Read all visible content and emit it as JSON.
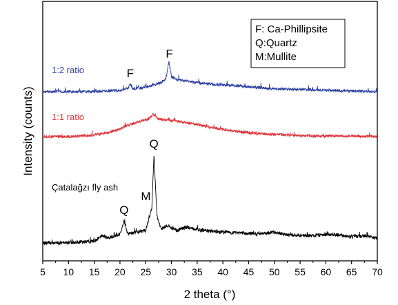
{
  "chart_data": {
    "type": "line",
    "title": "",
    "xlabel": "2 theta (°)",
    "ylabel": "Intensity (counts)",
    "xlim": [
      5,
      70
    ],
    "x_ticks": [
      5,
      10,
      15,
      20,
      25,
      30,
      35,
      40,
      45,
      50,
      55,
      60,
      65,
      70
    ],
    "y_tick_labels": "none",
    "grid": false,
    "legend_box": {
      "placement": "top-right",
      "entries": [
        "F: Ca-Phillipsite",
        "Q:Quartz",
        "M:Mullite"
      ]
    },
    "series": [
      {
        "name": "1:2 ratio",
        "color": "#2b3fa0",
        "x": [
          5,
          10,
          15,
          17,
          20,
          21.5,
          22,
          22.5,
          24,
          26,
          28,
          29,
          29.5,
          30,
          31,
          33,
          35,
          38,
          42,
          46,
          50,
          55,
          60,
          65,
          70
        ],
        "y": [
          0.0,
          0.0,
          0.0,
          0.01,
          0.02,
          0.04,
          0.1,
          0.04,
          0.05,
          0.08,
          0.12,
          0.18,
          0.4,
          0.2,
          0.16,
          0.14,
          0.12,
          0.1,
          0.08,
          0.06,
          0.04,
          0.03,
          0.02,
          0.01,
          0.0
        ],
        "peaks": [
          {
            "label": "F",
            "x": 22.0
          },
          {
            "label": "F",
            "x": 29.6
          }
        ]
      },
      {
        "name": "1:1 ratio",
        "color": "#e0343a",
        "x": [
          5,
          10,
          15,
          18,
          20,
          22,
          24,
          25.5,
          26.5,
          27.5,
          29,
          31,
          33,
          35,
          38,
          42,
          46,
          50,
          55,
          60,
          65,
          70
        ],
        "y": [
          0.0,
          0.0,
          0.03,
          0.08,
          0.14,
          0.22,
          0.28,
          0.32,
          0.4,
          0.32,
          0.3,
          0.28,
          0.25,
          0.22,
          0.16,
          0.1,
          0.06,
          0.04,
          0.02,
          0.01,
          0.01,
          0.0
        ],
        "peaks": []
      },
      {
        "name": "Çatalağzı fly ash",
        "color": "#000000",
        "x": [
          5,
          10,
          15,
          16.5,
          18,
          20,
          20.8,
          21.5,
          23,
          25,
          26.2,
          26.6,
          27.2,
          28,
          29.4,
          31,
          33,
          35,
          38,
          41,
          44,
          47,
          50,
          53,
          57,
          60.5,
          65,
          68,
          70
        ],
        "y": [
          0.0,
          0.0,
          0.02,
          0.08,
          0.06,
          0.1,
          0.25,
          0.1,
          0.12,
          0.14,
          0.4,
          1.0,
          0.3,
          0.16,
          0.2,
          0.14,
          0.18,
          0.15,
          0.13,
          0.12,
          0.11,
          0.1,
          0.12,
          0.09,
          0.08,
          0.1,
          0.07,
          0.08,
          0.05
        ],
        "peaks": [
          {
            "label": "Q",
            "x": 20.8
          },
          {
            "label": "M",
            "x": 26.1
          },
          {
            "label": "Q",
            "x": 26.6
          }
        ]
      }
    ]
  }
}
